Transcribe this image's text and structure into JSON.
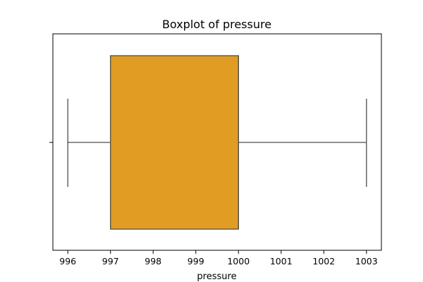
{
  "chart_data": {
    "type": "box",
    "title": "Boxplot of pressure",
    "xlabel": "pressure",
    "ylabel": "",
    "orientation": "horizontal",
    "xlim": [
      995.65,
      1003.35
    ],
    "xticks": [
      996,
      997,
      998,
      999,
      1000,
      1001,
      1002,
      1003
    ],
    "box": {
      "whisker_low": 996,
      "q1": 997,
      "median": 1000,
      "q3": 1000,
      "whisker_high": 1003,
      "fill_color": "#e19c24",
      "line_color": "#4d4d4d"
    },
    "grid": false,
    "legend": false
  }
}
